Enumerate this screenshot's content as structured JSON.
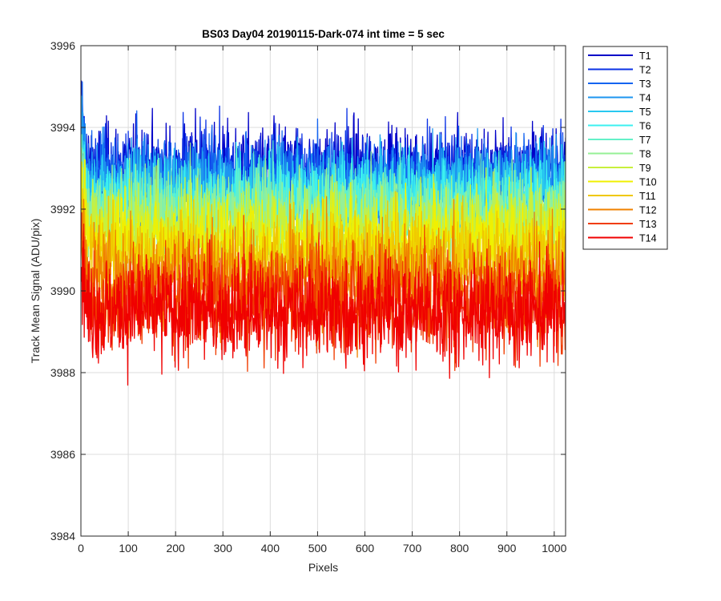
{
  "chart_data": {
    "type": "line",
    "title": "BS03 Day04 20190115-Dark-074 int time = 5 sec",
    "xlabel": "Pixels",
    "ylabel": "Track Mean Signal (ADU/pix)",
    "xlim": [
      0,
      1024
    ],
    "ylim": [
      3984,
      3996
    ],
    "xticks": [
      0,
      100,
      200,
      300,
      400,
      500,
      600,
      700,
      800,
      900,
      1000
    ],
    "yticks": [
      3984,
      3986,
      3988,
      3990,
      3992,
      3994,
      3996
    ],
    "grid": true,
    "legend_position": "outside-top-right",
    "n_pixels": 1024,
    "series": [
      {
        "name": "T1",
        "color": "#0000c8",
        "mean": 3993.0,
        "noise": 0.75
      },
      {
        "name": "T2",
        "color": "#0a32e6",
        "mean": 3992.85,
        "noise": 0.75
      },
      {
        "name": "T3",
        "color": "#1464f0",
        "mean": 3992.7,
        "noise": 0.75
      },
      {
        "name": "T4",
        "color": "#1e96f0",
        "mean": 3992.55,
        "noise": 0.75
      },
      {
        "name": "T5",
        "color": "#28c8f0",
        "mean": 3992.4,
        "noise": 0.75
      },
      {
        "name": "T6",
        "color": "#3cf0f0",
        "mean": 3992.2,
        "noise": 0.75
      },
      {
        "name": "T7",
        "color": "#64f0c8",
        "mean": 3992.0,
        "noise": 0.75
      },
      {
        "name": "T8",
        "color": "#96f096",
        "mean": 3991.8,
        "noise": 0.8
      },
      {
        "name": "T9",
        "color": "#c8f03c",
        "mean": 3991.5,
        "noise": 0.8
      },
      {
        "name": "T10",
        "color": "#f0f000",
        "mean": 3991.2,
        "noise": 0.8
      },
      {
        "name": "T11",
        "color": "#f0c800",
        "mean": 3990.8,
        "noise": 0.85
      },
      {
        "name": "T12",
        "color": "#f08200",
        "mean": 3990.3,
        "noise": 0.9
      },
      {
        "name": "T13",
        "color": "#f03c00",
        "mean": 3989.8,
        "noise": 0.9
      },
      {
        "name": "T14",
        "color": "#f00000",
        "mean": 3989.5,
        "noise": 0.9
      }
    ]
  }
}
